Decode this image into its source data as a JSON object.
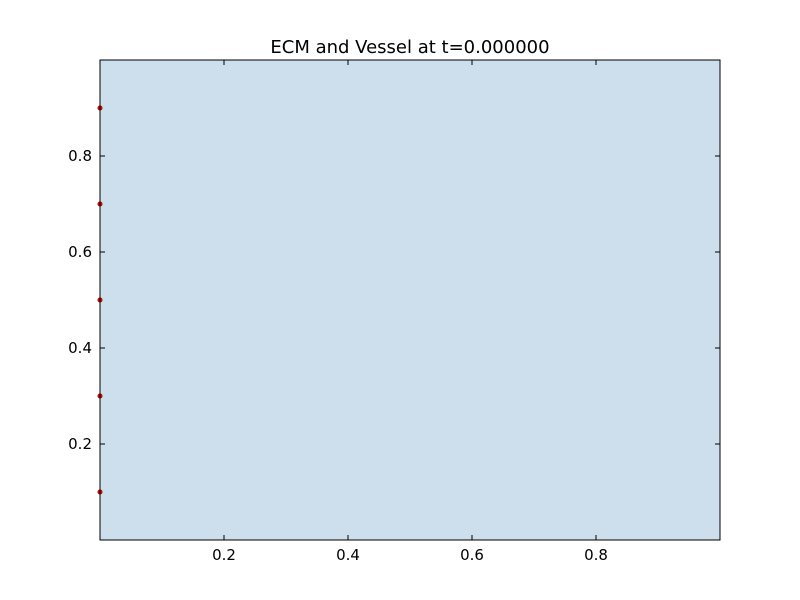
{
  "chart_data": {
    "type": "scatter",
    "title": "ECM and Vessel at t=0.000000",
    "xlabel": "",
    "ylabel": "",
    "xlim": [
      0.0,
      1.0
    ],
    "ylim": [
      0.0,
      1.0
    ],
    "xticks": [
      0.2,
      0.4,
      0.6,
      0.8
    ],
    "yticks": [
      0.2,
      0.4,
      0.6,
      0.8
    ],
    "xtick_labels": [
      "0.2",
      "0.4",
      "0.6",
      "0.8"
    ],
    "ytick_labels": [
      "0.2",
      "0.4",
      "0.6",
      "0.8"
    ],
    "grid": false,
    "background_color": "#cddeec",
    "series": [
      {
        "color": "#c00000",
        "points": [
          {
            "x": 0.0,
            "y": 0.1
          },
          {
            "x": 0.0,
            "y": 0.3
          },
          {
            "x": 0.0,
            "y": 0.5
          },
          {
            "x": 0.0,
            "y": 0.7
          },
          {
            "x": 0.0,
            "y": 0.9
          }
        ]
      }
    ]
  }
}
